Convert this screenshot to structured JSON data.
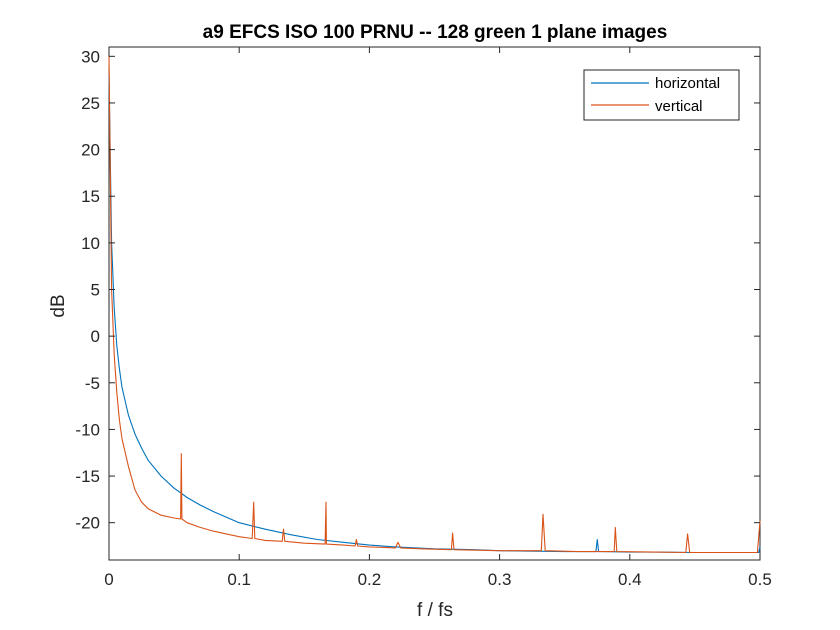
{
  "chart_data": {
    "type": "line",
    "title": "a9 EFCS ISO 100 PRNU -- 128 green 1 plane images",
    "xlabel": "f / fs",
    "ylabel": "dB",
    "xlim": [
      0,
      0.5
    ],
    "ylim": [
      -24,
      31
    ],
    "xticks": [
      0,
      0.1,
      0.2,
      0.3,
      0.4,
      0.5
    ],
    "xtick_labels": [
      "0",
      "0.1",
      "0.2",
      "0.3",
      "0.4",
      "0.5"
    ],
    "yticks": [
      30,
      25,
      20,
      15,
      10,
      5,
      0,
      -5,
      -10,
      -15,
      -20
    ],
    "ytick_labels": [
      "30",
      "25",
      "20",
      "15",
      "10",
      "5",
      "0",
      "-5",
      "-10",
      "-15",
      "-20"
    ],
    "grid": false,
    "legend": "top-right",
    "series": [
      {
        "name": "horizontal",
        "color": "#0072BD",
        "x": [
          0,
          0.002,
          0.004,
          0.006,
          0.008,
          0.01,
          0.015,
          0.02,
          0.025,
          0.03,
          0.04,
          0.05,
          0.06,
          0.07,
          0.08,
          0.09,
          0.1,
          0.12,
          0.14,
          0.16,
          0.18,
          0.2,
          0.22,
          0.25,
          0.28,
          0.3,
          0.32,
          0.35,
          0.374,
          0.375,
          0.376,
          0.38,
          0.4,
          0.42,
          0.45,
          0.48,
          0.499,
          0.5
        ],
        "y": [
          28,
          10,
          3,
          -1,
          -3.5,
          -5.5,
          -8.5,
          -10.5,
          -12,
          -13.3,
          -15,
          -16.3,
          -17.3,
          -18.1,
          -18.8,
          -19.4,
          -20,
          -20.7,
          -21.3,
          -21.8,
          -22.1,
          -22.4,
          -22.6,
          -22.8,
          -22.9,
          -23,
          -23.05,
          -23.1,
          -23.1,
          -21.8,
          -23.1,
          -23.1,
          -23.15,
          -23.15,
          -23.2,
          -23.2,
          -23.2,
          -22.6
        ]
      },
      {
        "name": "vertical",
        "color": "#D95319",
        "x": [
          0,
          0.002,
          0.004,
          0.006,
          0.008,
          0.01,
          0.015,
          0.02,
          0.025,
          0.03,
          0.04,
          0.05,
          0.055,
          0.0555,
          0.056,
          0.06,
          0.07,
          0.08,
          0.09,
          0.1,
          0.11,
          0.1111,
          0.112,
          0.12,
          0.133,
          0.134,
          0.135,
          0.15,
          0.166,
          0.1667,
          0.167,
          0.18,
          0.189,
          0.19,
          0.191,
          0.2,
          0.22,
          0.222,
          0.224,
          0.24,
          0.263,
          0.2639,
          0.265,
          0.3,
          0.332,
          0.3333,
          0.335,
          0.36,
          0.388,
          0.3889,
          0.39,
          0.42,
          0.443,
          0.4444,
          0.446,
          0.47,
          0.498,
          0.5
        ],
        "y": [
          30,
          5,
          -2,
          -6,
          -9,
          -11,
          -14,
          -16.5,
          -17.8,
          -18.5,
          -19.2,
          -19.5,
          -19.6,
          -12.6,
          -19.6,
          -20,
          -20.5,
          -20.9,
          -21.2,
          -21.5,
          -21.7,
          -17.8,
          -21.7,
          -21.9,
          -22,
          -20.7,
          -22,
          -22.2,
          -22.3,
          -17.8,
          -22.3,
          -22.4,
          -22.5,
          -21.8,
          -22.5,
          -22.6,
          -22.7,
          -22.1,
          -22.7,
          -22.8,
          -22.9,
          -21.1,
          -22.9,
          -23,
          -23,
          -19.1,
          -23,
          -23.1,
          -23.1,
          -20.5,
          -23.1,
          -23.15,
          -23.2,
          -21.2,
          -23.2,
          -23.2,
          -23.2,
          -19.8
        ]
      }
    ]
  }
}
